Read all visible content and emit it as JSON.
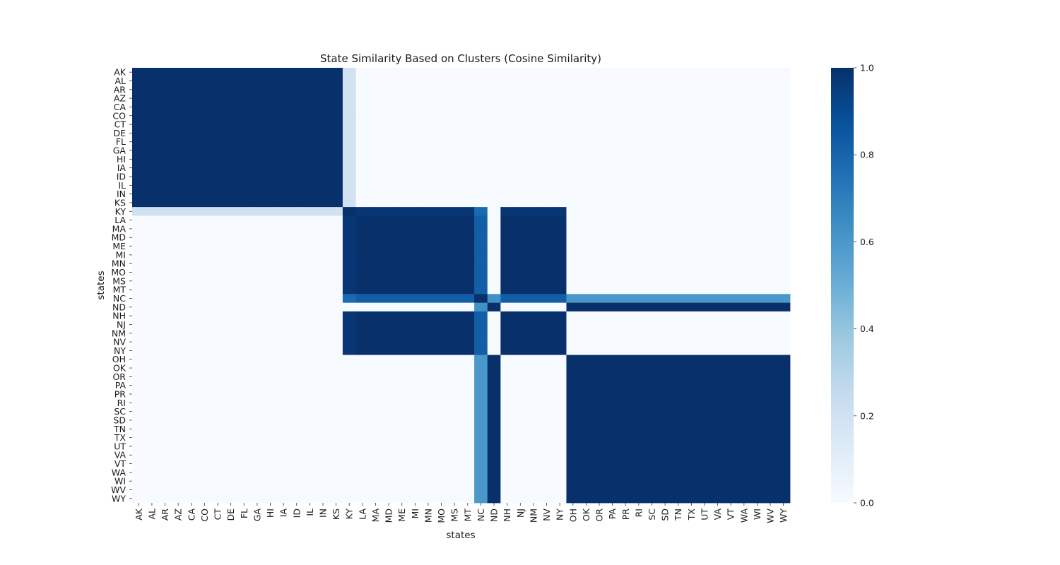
{
  "chart_data": {
    "type": "heatmap",
    "title": "State Similarity Based on Clusters (Cosine Similarity)",
    "xlabel": "states",
    "ylabel": "states",
    "colormap": "Blues",
    "colors": {
      "low": "#f7fbff",
      "high": "#08306b"
    },
    "vmin": 0.0,
    "vmax": 1.0,
    "colorbar_ticks": [
      "0.0",
      "0.2",
      "0.4",
      "0.6",
      "0.8",
      "1.0"
    ],
    "states": [
      "AK",
      "AL",
      "AR",
      "AZ",
      "CA",
      "CO",
      "CT",
      "DE",
      "FL",
      "GA",
      "HI",
      "IA",
      "ID",
      "IL",
      "IN",
      "KS",
      "KY",
      "LA",
      "MA",
      "MD",
      "ME",
      "MI",
      "MN",
      "MO",
      "MS",
      "MT",
      "NC",
      "ND",
      "NH",
      "NJ",
      "NM",
      "NV",
      "NY",
      "OH",
      "OK",
      "OR",
      "PA",
      "PR",
      "RI",
      "SC",
      "SD",
      "TN",
      "TX",
      "UT",
      "VA",
      "VT",
      "WA",
      "WI",
      "WV",
      "WY"
    ],
    "groups": {
      "A": [
        "AK",
        "AL",
        "AR",
        "AZ",
        "CA",
        "CO",
        "CT",
        "DE",
        "FL",
        "GA",
        "HI",
        "IA",
        "ID",
        "IL",
        "IN",
        "KS"
      ],
      "B": [
        "LA",
        "MA",
        "MD",
        "ME",
        "MI",
        "MN",
        "MO",
        "MS",
        "MT",
        "NH",
        "NJ",
        "NM",
        "NV",
        "NY"
      ],
      "C": [
        "OH",
        "OK",
        "OR",
        "PA",
        "PR",
        "RI",
        "SC",
        "SD",
        "TN",
        "TX",
        "UT",
        "VA",
        "VT",
        "WA",
        "WI",
        "WV",
        "WY"
      ],
      "KY": [
        "KY"
      ],
      "NC": [
        "NC"
      ],
      "ND": [
        "ND"
      ]
    },
    "similarity_by_group": {
      "A-A": 1.0,
      "A-B": 0.0,
      "A-C": 0.0,
      "A-KY": 0.2,
      "A-NC": 0.0,
      "A-ND": 0.0,
      "B-B": 1.0,
      "B-C": 0.0,
      "B-KY": 0.98,
      "B-NC": 0.82,
      "B-ND": 0.0,
      "C-C": 1.0,
      "C-KY": 0.0,
      "C-NC": 0.6,
      "C-ND": 1.0,
      "KY-KY": 1.0,
      "KY-NC": 0.78,
      "KY-ND": 0.0,
      "NC-NC": 1.0,
      "NC-ND": 0.63,
      "ND-ND": 1.0
    }
  }
}
